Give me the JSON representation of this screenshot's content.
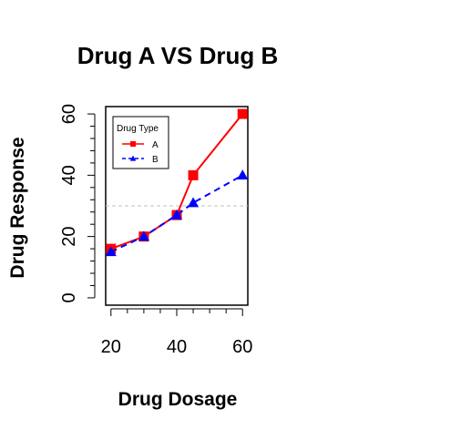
{
  "chart_data": {
    "type": "line",
    "title": "Drug A VS Drug B",
    "xlabel": "Drug Dosage",
    "ylabel": "Drug Response",
    "xlim": [
      18.4,
      61.6
    ],
    "ylim": [
      -2.4,
      62.4
    ],
    "x_ticks": [
      20,
      40,
      60
    ],
    "x_minor_ticks": [
      20,
      25,
      30,
      35,
      40,
      45,
      50,
      55,
      60
    ],
    "y_ticks": [
      0,
      20,
      40,
      60
    ],
    "y_minor_ticks": [
      0,
      4,
      8,
      12,
      16,
      20,
      24,
      28,
      32,
      36,
      40,
      44,
      48,
      52,
      56,
      60
    ],
    "reference_line": {
      "y": 30,
      "style": "dashed",
      "color": "#c0c0c0"
    },
    "grid": false,
    "legend": {
      "title": "Drug Type",
      "position": "top-left"
    },
    "series": [
      {
        "name": "A",
        "color": "#ff0000",
        "marker": "square",
        "line_style": "solid",
        "x": [
          20,
          30,
          40,
          45,
          60
        ],
        "y": [
          16,
          20,
          27,
          40,
          60
        ]
      },
      {
        "name": "B",
        "color": "#0000ff",
        "marker": "triangle",
        "line_style": "dashed",
        "x": [
          20,
          30,
          40,
          45,
          60
        ],
        "y": [
          15,
          20,
          27,
          31,
          40
        ]
      }
    ]
  }
}
